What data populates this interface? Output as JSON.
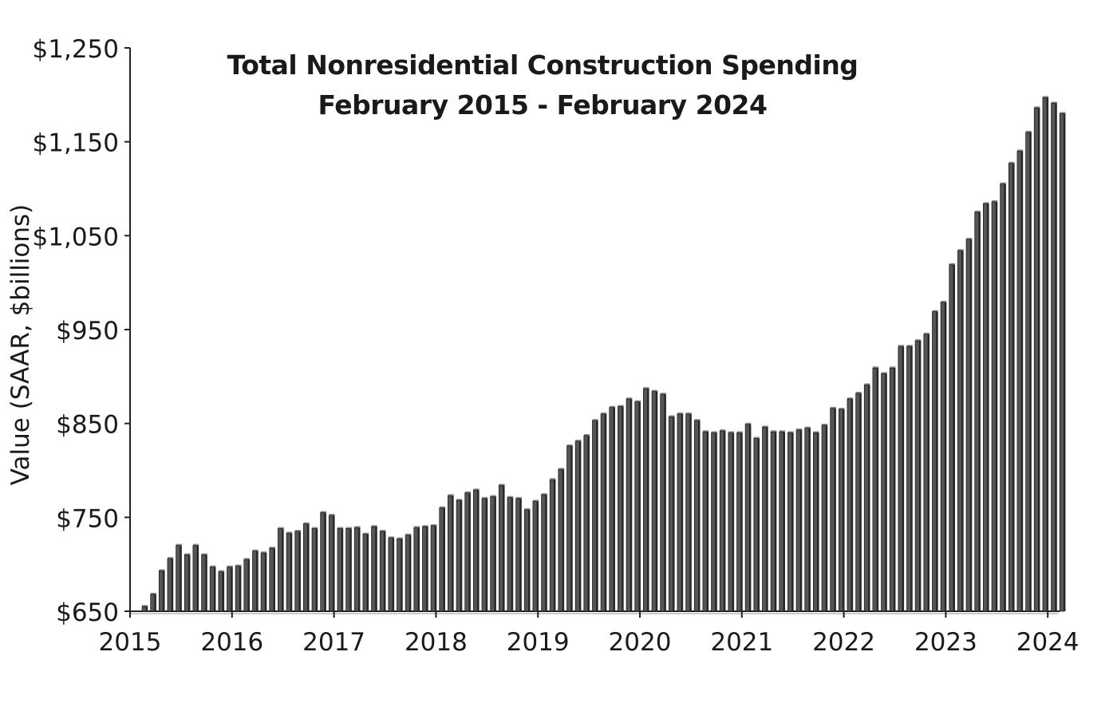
{
  "chart_data": {
    "type": "bar",
    "title_lines": [
      "Total Nonresidential Construction Spending",
      "February 2015 - February 2024"
    ],
    "ylabel": "Value (SAAR, $billions)",
    "xlabel": "",
    "ylim": [
      650,
      1250
    ],
    "yticks": [
      "$650",
      "$750",
      "$850",
      "$950",
      "$1,050",
      "$1,150",
      "$1,250"
    ],
    "ytick_values": [
      650,
      750,
      850,
      950,
      1050,
      1150,
      1250
    ],
    "xticks": [
      "2015",
      "2016",
      "2017",
      "2018",
      "2019",
      "2020",
      "2021",
      "2022",
      "2023",
      "2024"
    ],
    "grid": false,
    "bar_color": "#555555",
    "first_month": "2015-02",
    "last_month": "2024-02",
    "values": [
      655,
      668,
      693,
      706,
      720,
      710,
      720,
      710,
      697,
      692,
      697,
      698,
      705,
      714,
      712,
      717,
      738,
      733,
      735,
      743,
      738,
      755,
      752,
      738,
      738,
      739,
      732,
      740,
      735,
      728,
      727,
      731,
      739,
      740,
      741,
      760,
      773,
      768,
      776,
      779,
      770,
      772,
      784,
      771,
      770,
      758,
      767,
      774,
      790,
      801,
      826,
      831,
      837,
      853,
      860,
      867,
      868,
      876,
      873,
      887,
      884,
      881,
      857,
      860,
      860,
      853,
      841,
      840,
      842,
      840,
      840,
      849,
      834,
      846,
      841,
      841,
      840,
      843,
      845,
      840,
      848,
      866,
      865,
      876,
      882,
      891,
      909,
      903,
      909,
      932,
      932,
      938,
      945,
      969,
      979,
      1019,
      1034,
      1046,
      1075,
      1084,
      1086,
      1105,
      1127,
      1140,
      1160,
      1186,
      1197,
      1191,
      1180
    ]
  }
}
